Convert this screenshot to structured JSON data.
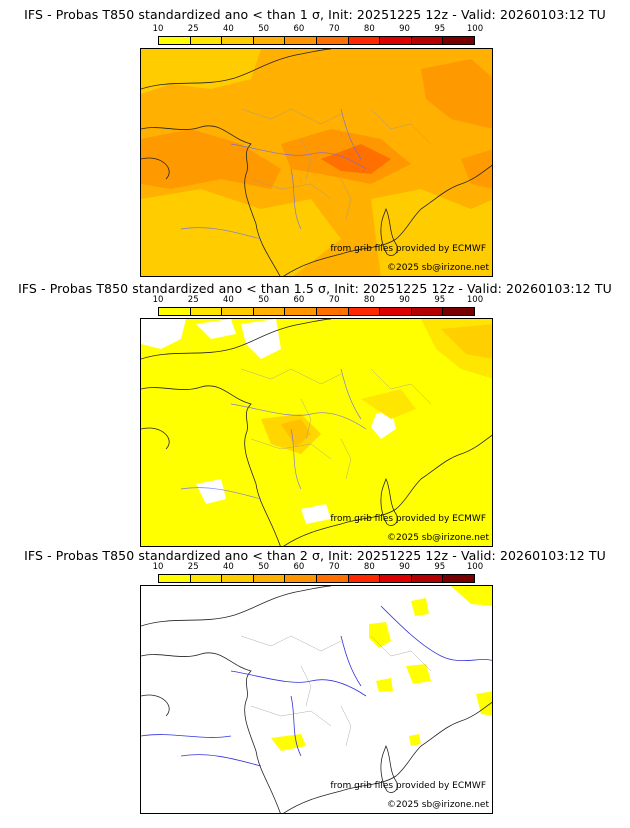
{
  "legend": {
    "ticks": [
      "10",
      "25",
      "40",
      "50",
      "60",
      "70",
      "80",
      "90",
      "95",
      "100"
    ],
    "colors": [
      "#ffff00",
      "#ffe600",
      "#ffcc00",
      "#ffb000",
      "#ff9500",
      "#ff7000",
      "#ff2800",
      "#dc0000",
      "#b40000",
      "#780000"
    ]
  },
  "panels": [
    {
      "title": "IFS - Probas T850  standardized ano < than 1 σ, Init: 20251225 12z - Valid: 20260103:12 TU",
      "threshold": "1 σ",
      "provider": "from grib files provided by ECMWF",
      "copyright": "©2025 sb@irizone.net"
    },
    {
      "title": "IFS - Probas T850  standardized ano < than 1.5 σ, Init: 20251225 12z - Valid: 20260103:12 TU",
      "threshold": "1.5 σ",
      "provider": "from grib files provided by ECMWF",
      "copyright": "©2025 sb@irizone.net"
    },
    {
      "title": "IFS - Probas T850  standardized ano < than 2 σ, Init: 20251225 12z - Valid: 20260103:12 TU",
      "threshold": "2 σ",
      "provider": "from grib files provided by ECMWF",
      "copyright": "©2025 sb@irizone.net"
    }
  ]
}
